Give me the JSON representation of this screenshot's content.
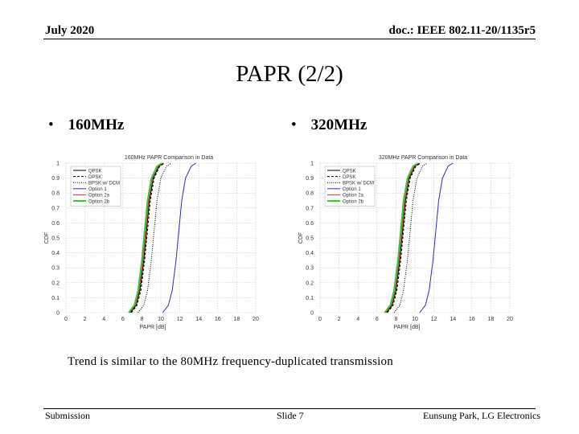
{
  "header": {
    "date": "July 2020",
    "doc_id": "doc.: IEEE 802.11-20/1135r5"
  },
  "slide": {
    "title": "PAPR (2/2)",
    "bullets": [
      "160MHz",
      "320MHz"
    ],
    "note": "Trend is similar to the 80MHz frequency-duplicated transmission"
  },
  "footer": {
    "left": "Submission",
    "center": "Slide 7",
    "right": "Eunsung Park, LG Electronics"
  },
  "chart_data": [
    {
      "type": "line",
      "title": "160MHz PAPR Comparison in Data",
      "xlabel": "PAPR [dB]",
      "ylabel": "CDF",
      "xlim": [
        0,
        20
      ],
      "ylim": [
        0,
        1
      ],
      "xticks": [
        0,
        2,
        4,
        6,
        8,
        10,
        12,
        14,
        16,
        18,
        20
      ],
      "yticks": [
        0,
        0.1,
        0.2,
        0.3,
        0.4,
        0.5,
        0.6,
        0.7,
        0.8,
        0.9,
        1
      ],
      "grid": true,
      "legend_position": "top-left",
      "series": [
        {
          "name": "QPSK",
          "color": "#000000",
          "dash": "solid",
          "x": [
            6.8,
            7.4,
            7.8,
            8.2,
            8.5,
            8.8,
            9.2,
            9.8,
            10.3
          ],
          "y": [
            0,
            0.05,
            0.15,
            0.35,
            0.55,
            0.75,
            0.9,
            0.98,
            1
          ]
        },
        {
          "name": "DPSK",
          "color": "#000000",
          "dash": "dashed",
          "x": [
            6.9,
            7.5,
            7.9,
            8.3,
            8.6,
            8.9,
            9.3,
            9.9,
            10.4
          ],
          "y": [
            0,
            0.05,
            0.15,
            0.35,
            0.55,
            0.75,
            0.9,
            0.98,
            1
          ]
        },
        {
          "name": "BPSK w/ DCM",
          "color": "#000000",
          "dash": "dotted",
          "x": [
            7.6,
            8.2,
            8.6,
            9.0,
            9.3,
            9.6,
            10.0,
            10.6,
            11.1
          ],
          "y": [
            0,
            0.05,
            0.15,
            0.35,
            0.55,
            0.75,
            0.9,
            0.98,
            1
          ]
        },
        {
          "name": "Option 1",
          "color": "#2a2acc",
          "dash": "solid",
          "x": [
            10.2,
            10.8,
            11.2,
            11.6,
            11.9,
            12.2,
            12.6,
            13.2,
            13.7
          ],
          "y": [
            0,
            0.05,
            0.15,
            0.35,
            0.55,
            0.75,
            0.9,
            0.98,
            1
          ]
        },
        {
          "name": "Option 2a",
          "color": "#e03030",
          "dash": "solid",
          "x": [
            6.7,
            7.3,
            7.7,
            8.1,
            8.4,
            8.7,
            9.1,
            9.7,
            10.2
          ],
          "y": [
            0,
            0.05,
            0.15,
            0.35,
            0.55,
            0.75,
            0.9,
            0.98,
            1
          ]
        },
        {
          "name": "Option 2b",
          "color": "#33cc33",
          "dash": "solid",
          "x": [
            6.6,
            7.2,
            7.6,
            8.0,
            8.3,
            8.6,
            9.0,
            9.6,
            10.1
          ],
          "y": [
            0,
            0.05,
            0.15,
            0.35,
            0.55,
            0.75,
            0.9,
            0.98,
            1
          ]
        }
      ]
    },
    {
      "type": "line",
      "title": "320MHz PAPR Comparison in Data",
      "xlabel": "PAPR [dB]",
      "ylabel": "CDF",
      "xlim": [
        0,
        20
      ],
      "ylim": [
        0,
        1
      ],
      "xticks": [
        0,
        2,
        4,
        6,
        8,
        10,
        12,
        14,
        16,
        18,
        20
      ],
      "yticks": [
        0,
        0.1,
        0.2,
        0.3,
        0.4,
        0.5,
        0.6,
        0.7,
        0.8,
        0.9,
        1
      ],
      "grid": true,
      "legend_position": "top-left",
      "series": [
        {
          "name": "QPSK",
          "color": "#000000",
          "dash": "solid",
          "x": [
            7.0,
            7.6,
            8.0,
            8.4,
            8.7,
            9.0,
            9.4,
            10.0,
            10.5
          ],
          "y": [
            0,
            0.05,
            0.15,
            0.35,
            0.55,
            0.75,
            0.9,
            0.98,
            1
          ]
        },
        {
          "name": "DPSK",
          "color": "#000000",
          "dash": "dashed",
          "x": [
            7.1,
            7.7,
            8.1,
            8.5,
            8.8,
            9.1,
            9.5,
            10.1,
            10.6
          ],
          "y": [
            0,
            0.05,
            0.15,
            0.35,
            0.55,
            0.75,
            0.9,
            0.98,
            1
          ]
        },
        {
          "name": "BPSK w/ DCM",
          "color": "#000000",
          "dash": "dotted",
          "x": [
            7.8,
            8.4,
            8.8,
            9.2,
            9.5,
            9.8,
            10.2,
            10.8,
            11.3
          ],
          "y": [
            0,
            0.05,
            0.15,
            0.35,
            0.55,
            0.75,
            0.9,
            0.98,
            1
          ]
        },
        {
          "name": "Option 1",
          "color": "#2a2acc",
          "dash": "solid",
          "x": [
            10.5,
            11.1,
            11.5,
            11.9,
            12.2,
            12.5,
            12.9,
            13.5,
            14.0
          ],
          "y": [
            0,
            0.05,
            0.15,
            0.35,
            0.55,
            0.75,
            0.9,
            0.98,
            1
          ]
        },
        {
          "name": "Option 2a",
          "color": "#e03030",
          "dash": "solid",
          "x": [
            6.9,
            7.5,
            7.9,
            8.3,
            8.6,
            8.9,
            9.3,
            9.9,
            10.4
          ],
          "y": [
            0,
            0.05,
            0.15,
            0.35,
            0.55,
            0.75,
            0.9,
            0.98,
            1
          ]
        },
        {
          "name": "Option 2b",
          "color": "#33cc33",
          "dash": "solid",
          "x": [
            6.8,
            7.4,
            7.8,
            8.2,
            8.5,
            8.8,
            9.2,
            9.8,
            10.3
          ],
          "y": [
            0,
            0.05,
            0.15,
            0.35,
            0.55,
            0.75,
            0.9,
            0.98,
            1
          ]
        }
      ]
    }
  ]
}
